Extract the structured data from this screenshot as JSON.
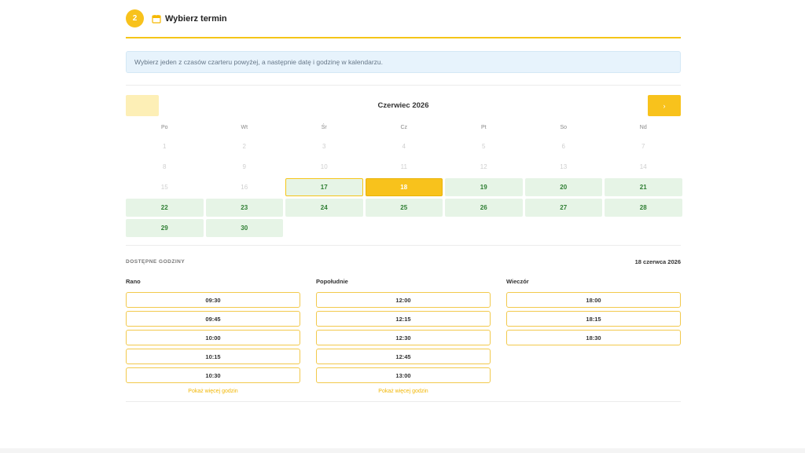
{
  "step": {
    "number": "2",
    "title": "Wybierz termin",
    "icon": "calendar-icon"
  },
  "info": {
    "text": "Wybierz jeden z czasów czarteru powyżej, a następnie datę i godzinę w kalendarzu."
  },
  "calendar": {
    "month_title": "Czerwiec 2026",
    "prev_icon": "chevron-left-icon",
    "next_label": "›",
    "weekdays": [
      "Po",
      "Wt",
      "Śr",
      "Cz",
      "Pt",
      "So",
      "Nd"
    ],
    "days": [
      {
        "label": "1",
        "state": "disabled"
      },
      {
        "label": "2",
        "state": "disabled"
      },
      {
        "label": "3",
        "state": "disabled"
      },
      {
        "label": "4",
        "state": "disabled"
      },
      {
        "label": "5",
        "state": "disabled"
      },
      {
        "label": "6",
        "state": "disabled"
      },
      {
        "label": "7",
        "state": "disabled"
      },
      {
        "label": "8",
        "state": "disabled"
      },
      {
        "label": "9",
        "state": "disabled"
      },
      {
        "label": "10",
        "state": "disabled"
      },
      {
        "label": "11",
        "state": "disabled"
      },
      {
        "label": "12",
        "state": "disabled"
      },
      {
        "label": "13",
        "state": "disabled"
      },
      {
        "label": "14",
        "state": "disabled"
      },
      {
        "label": "15",
        "state": "disabled"
      },
      {
        "label": "16",
        "state": "disabled"
      },
      {
        "label": "17",
        "state": "today"
      },
      {
        "label": "18",
        "state": "selected"
      },
      {
        "label": "19",
        "state": "available"
      },
      {
        "label": "20",
        "state": "available"
      },
      {
        "label": "21",
        "state": "available"
      },
      {
        "label": "22",
        "state": "available"
      },
      {
        "label": "23",
        "state": "available"
      },
      {
        "label": "24",
        "state": "available"
      },
      {
        "label": "25",
        "state": "available"
      },
      {
        "label": "26",
        "state": "available"
      },
      {
        "label": "27",
        "state": "available"
      },
      {
        "label": "28",
        "state": "available"
      },
      {
        "label": "29",
        "state": "available"
      },
      {
        "label": "30",
        "state": "available"
      }
    ]
  },
  "hours": {
    "title": "DOSTĘPNE GODZINY",
    "selected_date": "18 czerwca 2026",
    "columns": [
      {
        "title": "Rano",
        "slots": [
          "09:30",
          "09:45",
          "10:00",
          "10:15",
          "10:30"
        ],
        "more": "Pokaż więcej godzin"
      },
      {
        "title": "Popołudnie",
        "slots": [
          "12:00",
          "12:15",
          "12:30",
          "12:45",
          "13:00"
        ],
        "more": "Pokaż więcej godzin"
      },
      {
        "title": "Wieczór",
        "slots": [
          "18:00",
          "18:15",
          "18:30"
        ],
        "more": ""
      }
    ]
  },
  "colors": {
    "accent": "#f8c21c",
    "available_bg": "#e6f4e6",
    "available_text": "#2e7d32",
    "info_bg": "#e7f3fc"
  }
}
